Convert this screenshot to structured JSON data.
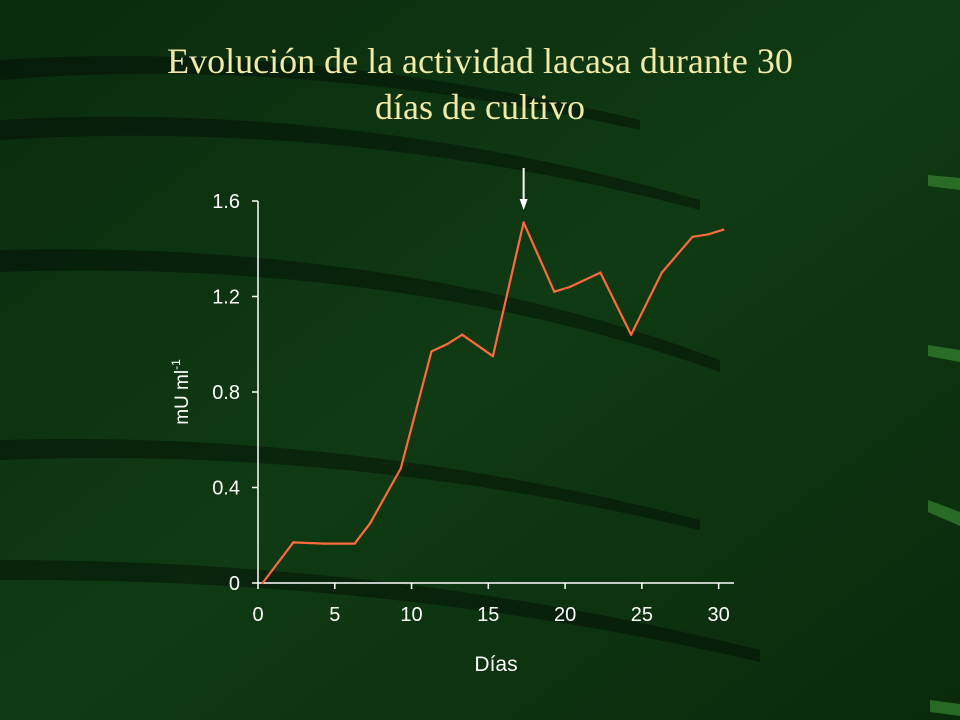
{
  "slide": {
    "title_line1": "Evolución de la actividad lacasa durante 30",
    "title_line2": "días de cultivo"
  },
  "colors": {
    "background": "#0d2b10",
    "title": "#f0eaa6",
    "line": "#ff6a3c",
    "axis": "#ffffff",
    "arrow": "#ffffff"
  },
  "chart_data": {
    "type": "line",
    "title": "Evolución de la actividad lacasa durante 30 días de cultivo",
    "xlabel": "Días",
    "ylabel": "mU ml",
    "ylabel_superscript": "-1",
    "xlim": [
      0,
      31
    ],
    "ylim": [
      0,
      1.6
    ],
    "x_ticks": [
      0,
      5,
      10,
      15,
      20,
      25,
      30
    ],
    "x_tick_labels": [
      "0",
      "5",
      "10",
      "15",
      "20",
      "25",
      "30"
    ],
    "y_ticks": [
      0,
      0.4,
      0.8,
      1.2,
      1.6
    ],
    "y_tick_labels": [
      "0",
      "0.4",
      "0.8",
      "1.2",
      "1.6"
    ],
    "grid": false,
    "series": [
      {
        "x": [
          0.3,
          2.3,
          4.3,
          6.3,
          7.3,
          9.3,
          11.3,
          12.3,
          13.3,
          15.3,
          17.3,
          19.3,
          20.3,
          22.3,
          24.3,
          26.3,
          28.3,
          29.3,
          30.3
        ],
        "y": [
          0.0,
          0.17,
          0.165,
          0.165,
          0.25,
          0.48,
          0.97,
          1.0,
          1.04,
          0.95,
          1.51,
          1.22,
          1.24,
          1.3,
          1.04,
          1.3,
          1.45,
          1.46,
          1.48
        ]
      }
    ],
    "annotations": [
      {
        "type": "arrow",
        "x": 17.3,
        "description": "downward arrow above peak"
      }
    ]
  }
}
